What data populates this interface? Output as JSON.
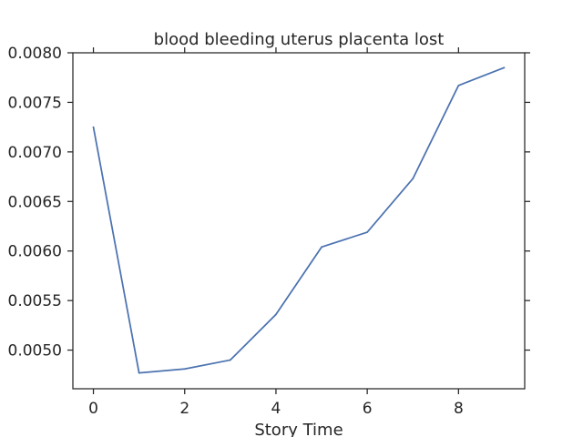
{
  "chart_data": {
    "type": "line",
    "title": "blood bleeding uterus placenta lost",
    "xlabel": "Story Time",
    "ylabel": "",
    "xlim": [
      -0.45,
      9.45
    ],
    "ylim": [
      0.00461,
      0.008
    ],
    "x_ticks": [
      0,
      2,
      4,
      6,
      8
    ],
    "x_tick_labels": [
      "0",
      "2",
      "4",
      "6",
      "8"
    ],
    "y_ticks": [
      0.005,
      0.0055,
      0.006,
      0.0065,
      0.007,
      0.0075,
      0.008
    ],
    "y_tick_labels": [
      "0.0050",
      "0.0055",
      "0.0060",
      "0.0065",
      "0.0070",
      "0.0075",
      "0.0080"
    ],
    "grid": false,
    "series": [
      {
        "color": "#4c72b0",
        "x": [
          0,
          1,
          2,
          3,
          4,
          5,
          6,
          7,
          8,
          9
        ],
        "y": [
          0.00725,
          0.00477,
          0.00481,
          0.0049,
          0.00536,
          0.00604,
          0.00619,
          0.00673,
          0.00767,
          0.00785
        ]
      }
    ]
  }
}
